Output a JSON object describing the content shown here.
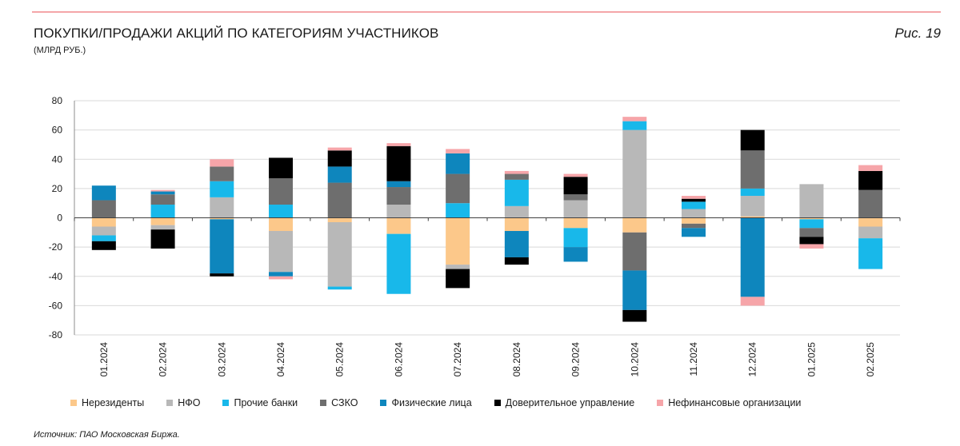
{
  "header": {
    "title": "ПОКУПКИ/ПРОДАЖИ АКЦИЙ ПО КАТЕГОРИЯМ УЧАСТНИКОВ",
    "subtitle": "(МЛРД РУБ.)",
    "figure_label": "Рис. 19"
  },
  "footer": {
    "source": "Источник: ПАО Московская Биржа."
  },
  "chart_data": {
    "type": "bar",
    "stacked": true,
    "title": "ПОКУПКИ/ПРОДАЖИ АКЦИЙ ПО КАТЕГОРИЯМ УЧАСТНИКОВ",
    "ylabel": "(МЛРД РУБ.)",
    "ylim": [
      -80,
      80
    ],
    "yticks": [
      80,
      60,
      40,
      20,
      0,
      -20,
      -40,
      -60,
      -80
    ],
    "legend_position": "bottom",
    "categories": [
      "01.2024",
      "02.2024",
      "03.2024",
      "04.2024",
      "05.2024",
      "06.2024",
      "07.2024",
      "08.2024",
      "09.2024",
      "10.2024",
      "11.2024",
      "12.2024",
      "01.2025",
      "02.2025"
    ],
    "series": [
      {
        "name": "Нерезиденты",
        "color": "#fcc88a",
        "values": [
          -6,
          -5,
          -1,
          -9,
          -3,
          -11,
          -32,
          -9,
          -7,
          -10,
          -4,
          1,
          -1,
          -6
        ]
      },
      {
        "name": "НФО",
        "color": "#b8b8b8",
        "values": [
          -6,
          -3,
          14,
          -28,
          -44,
          9,
          -3,
          8,
          12,
          60,
          6,
          14,
          23,
          -8
        ]
      },
      {
        "name": "Прочие банки",
        "color": "#18b8ea",
        "values": [
          -4,
          9,
          11,
          9,
          -2,
          -41,
          10,
          18,
          -13,
          6,
          5,
          5,
          -6,
          -21
        ]
      },
      {
        "name": "СЗКО",
        "color": "#6e6e6e",
        "values": [
          12,
          7,
          10,
          18,
          24,
          12,
          20,
          4,
          4,
          -26,
          -3,
          26,
          -6,
          19
        ]
      },
      {
        "name": "Физические лица",
        "color": "#0e86bd",
        "values": [
          10,
          2,
          -37,
          -3,
          11,
          4,
          14,
          -18,
          -10,
          -27,
          -6,
          -54,
          0,
          0
        ]
      },
      {
        "name": "Доверительное управление",
        "color": "#000000",
        "values": [
          -6,
          -13,
          -2,
          14,
          11,
          24,
          -13,
          -5,
          12,
          -8,
          2,
          14,
          -5,
          13
        ]
      },
      {
        "name": "Нефинансовые организации",
        "color": "#f6a5a9",
        "values": [
          0,
          1,
          5,
          -2,
          2,
          2,
          3,
          2,
          2,
          3,
          2,
          -6,
          -3,
          4
        ]
      }
    ]
  }
}
